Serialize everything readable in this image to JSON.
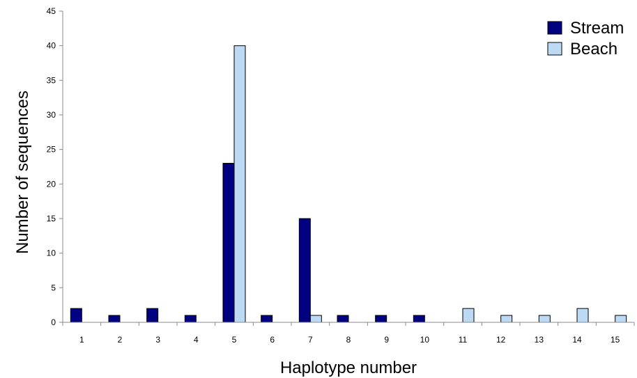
{
  "chart_data": {
    "type": "bar",
    "categories": [
      "1",
      "2",
      "3",
      "4",
      "5",
      "6",
      "7",
      "8",
      "9",
      "10",
      "11",
      "12",
      "13",
      "14",
      "15"
    ],
    "series": [
      {
        "name": "Stream",
        "color": "#000080",
        "values": [
          2,
          1,
          2,
          1,
          23,
          1,
          15,
          1,
          1,
          1,
          0,
          0,
          0,
          0,
          0
        ]
      },
      {
        "name": "Beach",
        "color": "#bcdaf3",
        "values": [
          0,
          0,
          0,
          0,
          40,
          0,
          1,
          0,
          0,
          0,
          2,
          1,
          1,
          2,
          1
        ]
      }
    ],
    "title": "",
    "xlabel": "Haplotype number",
    "ylabel": "Number of sequences",
    "ylim": [
      0,
      45
    ],
    "yticks": [
      0,
      5,
      10,
      15,
      20,
      25,
      30,
      35,
      40,
      45
    ],
    "grid": false,
    "legend_position": "top-right"
  }
}
